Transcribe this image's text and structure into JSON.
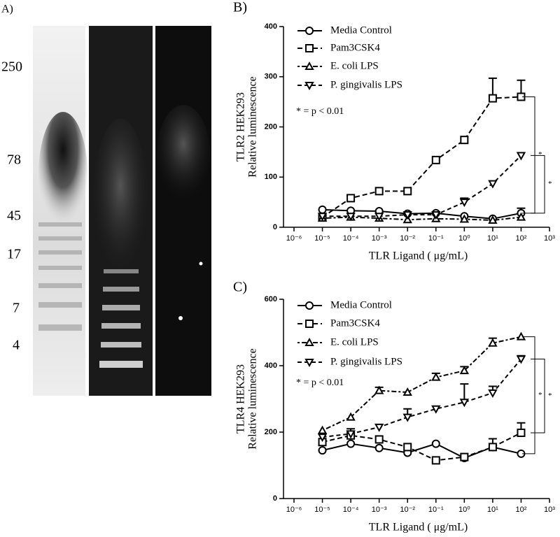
{
  "panel_a": {
    "label": "A)",
    "markers": [
      "250",
      "78",
      "45",
      "17",
      "7",
      "4"
    ]
  },
  "chart_data": [
    {
      "type": "line",
      "panel": "B)",
      "ylabel": [
        "TLR2 HEK293",
        "Relative luminescence"
      ],
      "xlabel": "TLR Ligand ( μg/mL)",
      "annotation": "* = p < 0.01",
      "significance": [
        "*",
        "*"
      ],
      "log_x": true,
      "x": [
        1e-05,
        0.0001,
        0.001,
        0.01,
        0.1,
        1,
        10,
        100
      ],
      "xlim": [
        1e-06,
        1000
      ],
      "xticks": [
        {
          "value": 1e-06,
          "label": "10⁻⁶"
        },
        {
          "value": 1e-05,
          "label": "10⁻⁵"
        },
        {
          "value": 0.0001,
          "label": "10⁻⁴"
        },
        {
          "value": 0.001,
          "label": "10⁻³"
        },
        {
          "value": 0.01,
          "label": "10⁻²"
        },
        {
          "value": 0.1,
          "label": "10⁻¹"
        },
        {
          "value": 1,
          "label": "10⁰"
        },
        {
          "value": 10,
          "label": "10¹"
        },
        {
          "value": 100,
          "label": "10²"
        },
        {
          "value": 1000,
          "label": "10³"
        }
      ],
      "ylim": [
        0,
        400
      ],
      "yticks": [
        0,
        100,
        200,
        300,
        400
      ],
      "series": [
        {
          "name": "Media Control",
          "color": "#000000",
          "marker": "circle",
          "values": [
            35,
            33,
            32,
            27,
            28,
            22,
            17,
            28
          ],
          "errors": [
            null,
            null,
            null,
            null,
            null,
            null,
            null,
            10
          ]
        },
        {
          "name": "Pam3CSK4",
          "color": "#000000",
          "marker": "square",
          "values": [
            20,
            58,
            72,
            72,
            134,
            174,
            257,
            260
          ],
          "errors": [
            null,
            5,
            null,
            null,
            null,
            null,
            40,
            33
          ]
        },
        {
          "name": "E. coli LPS",
          "color": "#000000",
          "marker": "triangle-up",
          "values": [
            18,
            20,
            18,
            15,
            17,
            16,
            14,
            20
          ],
          "errors": [
            null,
            null,
            null,
            null,
            null,
            null,
            null,
            null
          ]
        },
        {
          "name": "P. gingivalis LPS",
          "color": "#000000",
          "marker": "triangle-down",
          "values": [
            22,
            22,
            22,
            25,
            25,
            50,
            87,
            143
          ],
          "errors": [
            null,
            null,
            null,
            null,
            null,
            8,
            null,
            null
          ]
        }
      ]
    },
    {
      "type": "line",
      "panel": "C)",
      "ylabel": [
        "TLR4 HEK293",
        "Relative luminescence"
      ],
      "xlabel": "TLR Ligand ( μg/mL)",
      "annotation": "* = p < 0.01",
      "significance": [
        "*",
        "*"
      ],
      "log_x": true,
      "x": [
        1e-05,
        0.0001,
        0.001,
        0.01,
        0.1,
        1,
        10,
        100
      ],
      "xlim": [
        1e-06,
        1000
      ],
      "xticks": [
        {
          "value": 1e-06,
          "label": "10⁻⁶"
        },
        {
          "value": 1e-05,
          "label": "10⁻⁵"
        },
        {
          "value": 0.0001,
          "label": "10⁻⁴"
        },
        {
          "value": 0.001,
          "label": "10⁻³"
        },
        {
          "value": 0.01,
          "label": "10⁻²"
        },
        {
          "value": 0.1,
          "label": "10⁻¹"
        },
        {
          "value": 1,
          "label": "10⁰"
        },
        {
          "value": 10,
          "label": "10¹"
        },
        {
          "value": 100,
          "label": "10²"
        },
        {
          "value": 1000,
          "label": "10³"
        }
      ],
      "ylim": [
        0,
        600
      ],
      "yticks": [
        0,
        200,
        400,
        600
      ],
      "series": [
        {
          "name": "Media Control",
          "color": "#000000",
          "marker": "circle",
          "values": [
            145,
            165,
            152,
            138,
            165,
            122,
            155,
            135
          ],
          "errors": [
            null,
            null,
            null,
            null,
            null,
            null,
            null,
            null
          ]
        },
        {
          "name": "Pam3CSK4",
          "color": "#000000",
          "marker": "square",
          "values": [
            170,
            190,
            178,
            155,
            115,
            125,
            155,
            198
          ],
          "errors": [
            null,
            20,
            null,
            null,
            null,
            null,
            25,
            30
          ]
        },
        {
          "name": "E. coli LPS",
          "color": "#000000",
          "marker": "triangle-up",
          "values": [
            205,
            245,
            325,
            320,
            365,
            385,
            468,
            487
          ],
          "errors": [
            null,
            null,
            10,
            null,
            12,
            12,
            15,
            null
          ]
        },
        {
          "name": "P. gingivalis LPS",
          "color": "#000000",
          "marker": "triangle-down",
          "values": [
            185,
            195,
            215,
            245,
            270,
            290,
            318,
            420
          ],
          "errors": [
            null,
            null,
            null,
            25,
            null,
            55,
            20,
            10
          ]
        }
      ]
    }
  ]
}
